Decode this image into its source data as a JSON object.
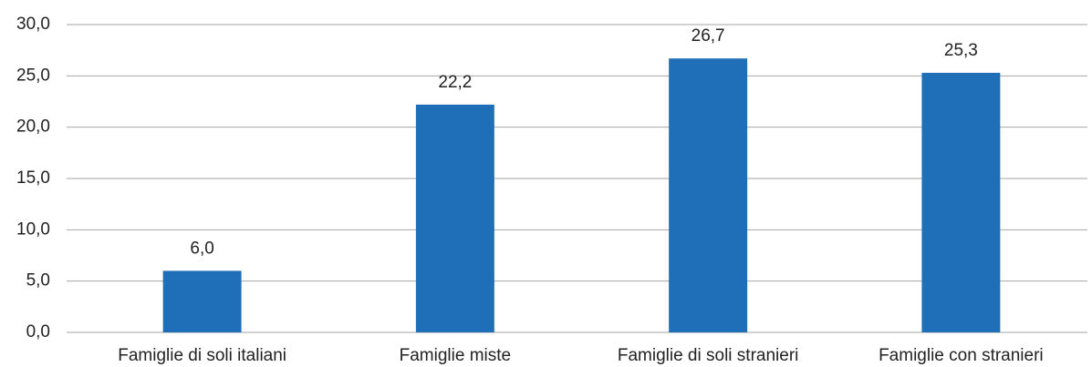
{
  "chart_data": {
    "type": "bar",
    "categories": [
      "Famiglie di soli italiani",
      "Famiglie miste",
      "Famiglie di soli stranieri",
      "Famiglie con stranieri"
    ],
    "values": [
      6.0,
      22.2,
      26.7,
      25.3
    ],
    "value_labels": [
      "6,0",
      "22,2",
      "26,7",
      "25,3"
    ],
    "color": "#1f6fb8",
    "ylim": [
      0,
      30
    ],
    "yticks": [
      {
        "value": 0,
        "label": "0,0"
      },
      {
        "value": 5,
        "label": "5,0"
      },
      {
        "value": 10,
        "label": "10,0"
      },
      {
        "value": 15,
        "label": "15,0"
      },
      {
        "value": 20,
        "label": "20,0"
      },
      {
        "value": 25,
        "label": "25,0"
      },
      {
        "value": 30,
        "label": "30,0"
      }
    ],
    "grid": true
  }
}
